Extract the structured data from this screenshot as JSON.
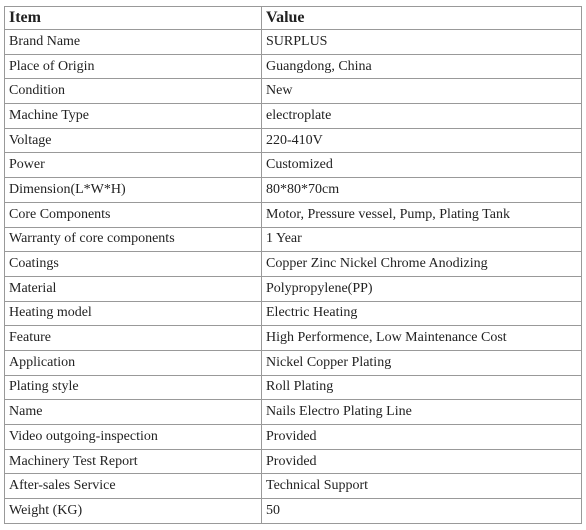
{
  "table": {
    "header": [
      "Item",
      "Value"
    ],
    "rows": [
      [
        "Brand Name",
        "SURPLUS"
      ],
      [
        "Place of Origin",
        "Guangdong, China"
      ],
      [
        "Condition",
        "New"
      ],
      [
        "Machine Type",
        "electroplate"
      ],
      [
        "Voltage",
        "220-410V"
      ],
      [
        "Power",
        "Customized"
      ],
      [
        "Dimension(L*W*H)",
        "80*80*70cm"
      ],
      [
        "Core Components",
        "Motor, Pressure vessel, Pump, Plating Tank"
      ],
      [
        "Warranty of core components",
        "1 Year"
      ],
      [
        "Coatings",
        "Copper Zinc Nickel Chrome Anodizing"
      ],
      [
        "Material",
        "Polypropylene(PP)"
      ],
      [
        "Heating model",
        "Electric Heating"
      ],
      [
        "Feature",
        "High Performence, Low Maintenance Cost"
      ],
      [
        "Application",
        "Nickel Copper Plating"
      ],
      [
        "Plating style",
        "Roll Plating"
      ],
      [
        "Name",
        "Nails Electro Plating Line"
      ],
      [
        "Video outgoing-inspection",
        "Provided"
      ],
      [
        "Machinery Test Report",
        "Provided"
      ],
      [
        "After-sales Service",
        "Technical Support"
      ],
      [
        "Weight (KG)",
        "50"
      ]
    ]
  }
}
